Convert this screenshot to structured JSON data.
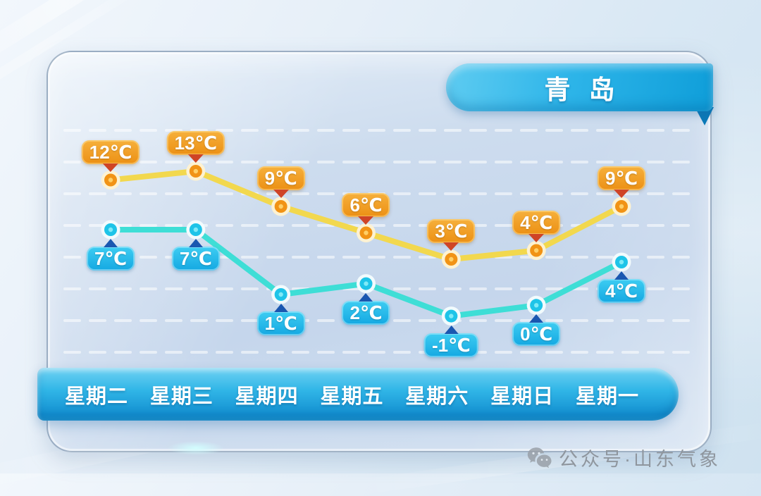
{
  "header": {
    "title": "青岛"
  },
  "chart_data": {
    "type": "line",
    "categories": [
      "星期二",
      "星期三",
      "星期四",
      "星期五",
      "星期六",
      "星期日",
      "星期一"
    ],
    "series": [
      {
        "name": "high-temperature",
        "values": [
          12,
          13,
          9,
          6,
          3,
          4,
          9
        ],
        "point_labels": [
          "12℃",
          "13℃",
          "9℃",
          "6℃",
          "3℃",
          "4℃",
          "9℃"
        ],
        "color": "#f2d84e"
      },
      {
        "name": "low-temperature",
        "values": [
          7,
          7,
          1,
          2,
          -1,
          0,
          4
        ],
        "point_labels": [
          "7℃",
          "7℃",
          "1℃",
          "2℃",
          "-1℃",
          "0℃",
          "4℃"
        ],
        "color": "#3eded6"
      }
    ],
    "unit": "℃",
    "grid": "dashed-horizontal-white",
    "legend_position": "none",
    "x_axis_position": "bottom-blue-bar"
  },
  "watermark": {
    "icon": "wechat-icon",
    "text": "公众号·山东气象"
  },
  "colors": {
    "high_line": "#f2d84e",
    "high_point": "#f19315",
    "high_point_ring": "#fdf2d2",
    "high_point_dot": "#ffcf66",
    "high_label_bg_top": "#f6b03c",
    "high_label_bg_bottom": "#ec9014",
    "high_arrow": "#cf4426",
    "low_line": "#3eded6",
    "low_point": "#1ec4e8",
    "low_point_ring": "#f2fbfd",
    "low_point_dot": "#7feaf7",
    "low_label_bg_top": "#3ecdf2",
    "low_label_bg_bottom": "#14a8e2",
    "low_arrow": "#1a57b0",
    "ribbon_blue": "#2eb5e9",
    "day_bar_blue": "#31b6e7",
    "card_bg": "#cbdaee",
    "watermark_gray": "#8f969e"
  }
}
